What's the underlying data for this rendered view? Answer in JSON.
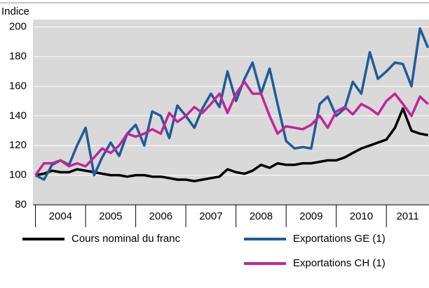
{
  "chart_data": {
    "type": "line",
    "ylabel": "Indice",
    "ylim": [
      80,
      205
    ],
    "yticks": [
      80,
      100,
      120,
      140,
      160,
      180,
      200
    ],
    "xlim": [
      2003.95,
      2011.85
    ],
    "xticks": [
      2004,
      2005,
      2006,
      2007,
      2008,
      2009,
      2010,
      2011
    ],
    "categories": [
      "2004",
      "2005",
      "2006",
      "2007",
      "2008",
      "2009",
      "2010",
      "2011"
    ],
    "grid": true,
    "x": [
      2004.0,
      2004.17,
      2004.33,
      2004.5,
      2004.67,
      2004.83,
      2005.0,
      2005.17,
      2005.33,
      2005.5,
      2005.67,
      2005.83,
      2006.0,
      2006.17,
      2006.33,
      2006.5,
      2006.67,
      2006.83,
      2007.0,
      2007.17,
      2007.33,
      2007.5,
      2007.67,
      2007.83,
      2008.0,
      2008.17,
      2008.33,
      2008.5,
      2008.67,
      2008.83,
      2009.0,
      2009.17,
      2009.33,
      2009.5,
      2009.67,
      2009.83,
      2010.0,
      2010.17,
      2010.33,
      2010.5,
      2010.67,
      2010.83,
      2011.0,
      2011.17,
      2011.33,
      2011.5,
      2011.67,
      2011.83
    ],
    "series": [
      {
        "name": "Cours nominal du franc",
        "color": "#000000",
        "values": [
          100,
          101,
          103,
          102,
          102,
          104,
          103,
          102,
          101,
          100,
          100,
          99,
          100,
          100,
          99,
          99,
          98,
          97,
          97,
          96,
          97,
          98,
          99,
          104,
          102,
          101,
          103,
          107,
          105,
          108,
          107,
          107,
          108,
          108,
          109,
          110,
          110,
          112,
          115,
          118,
          120,
          122,
          124,
          132,
          145,
          130,
          128,
          127
        ]
      },
      {
        "name": "Exportations GE (1)",
        "color": "#1f5c99",
        "values": [
          100,
          97,
          107,
          110,
          107,
          120,
          132,
          100,
          112,
          122,
          113,
          128,
          134,
          120,
          143,
          140,
          125,
          147,
          140,
          132,
          145,
          155,
          146,
          170,
          150,
          165,
          176,
          155,
          172,
          148,
          123,
          118,
          119,
          118,
          148,
          153,
          140,
          145,
          163,
          155,
          183,
          165,
          170,
          176,
          175,
          160,
          199,
          186
        ]
      },
      {
        "name": "Exportations CH (1)",
        "color": "#c0259a",
        "values": [
          100,
          108,
          108,
          110,
          106,
          108,
          106,
          112,
          118,
          115,
          120,
          128,
          126,
          128,
          131,
          128,
          142,
          136,
          140,
          146,
          142,
          148,
          155,
          142,
          155,
          163,
          155,
          155,
          140,
          128,
          133,
          132,
          131,
          134,
          140,
          132,
          143,
          146,
          141,
          148,
          145,
          141,
          150,
          155,
          148,
          140,
          153,
          148
        ]
      }
    ]
  }
}
